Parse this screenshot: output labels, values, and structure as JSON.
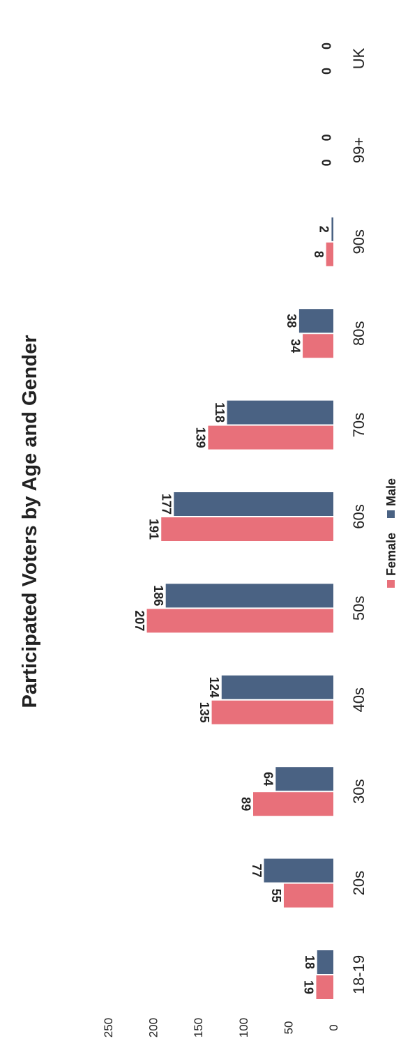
{
  "chart_data": {
    "type": "bar",
    "title": "Participated Voters by Age and Gender",
    "categories": [
      "18-19",
      "20s",
      "30s",
      "40s",
      "50s",
      "60s",
      "70s",
      "80s",
      "90s",
      "99+",
      "UK"
    ],
    "series": [
      {
        "name": "Female",
        "color": "#e8707a",
        "values": [
          19,
          55,
          89,
          135,
          207,
          191,
          139,
          34,
          8,
          0,
          0
        ]
      },
      {
        "name": "Male",
        "color": "#4a6283",
        "values": [
          18,
          77,
          64,
          124,
          186,
          177,
          118,
          38,
          2,
          0,
          0
        ]
      }
    ],
    "y_ticks": [
      "0",
      "50",
      "100",
      "150",
      "200",
      "250"
    ],
    "ylim": [
      0,
      250
    ],
    "grid": false,
    "legend_position": "bottom"
  }
}
